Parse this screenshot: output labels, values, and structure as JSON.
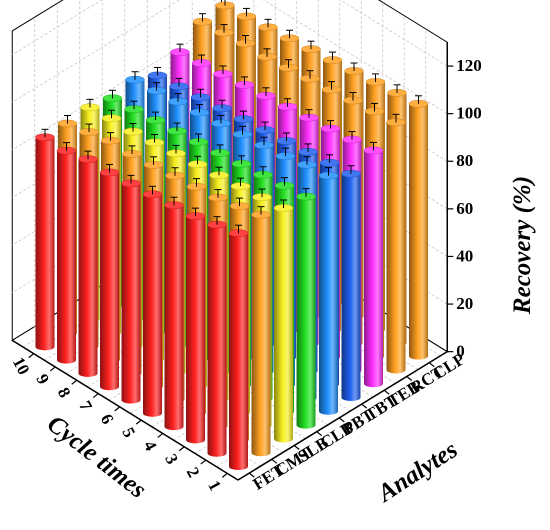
{
  "chart_data": {
    "type": "bar3d",
    "x_axis": {
      "label": "Cycle times",
      "ticks": [
        "1",
        "2",
        "3",
        "4",
        "5",
        "6",
        "7",
        "8",
        "9",
        "10"
      ]
    },
    "y_axis": {
      "label": "Analytes",
      "ticks": [
        "FET",
        "CMT",
        "SLB",
        "CLB",
        "PBT",
        "TBT",
        "TEB",
        "RCT",
        "CLP"
      ]
    },
    "z_axis": {
      "label": "Recovery (%)",
      "ticks": [
        "0",
        "20",
        "40",
        "60",
        "80",
        "100",
        "120"
      ],
      "range": [
        0,
        130
      ]
    },
    "grid": true,
    "error_bars": true,
    "colors": {
      "FET": "#ff2020",
      "CMT": "#ffa020",
      "SLB": "#f8f020",
      "CLB": "#20e020",
      "PBT": "#2090ff",
      "TBT": "#2060f0",
      "TEB": "#ff30ff",
      "RCT": "#ffa020",
      "CLP": "#ffa020"
    },
    "series": [
      {
        "name": "FET",
        "values": [
          98,
          96,
          94,
          93,
          92,
          91,
          90,
          90,
          88,
          88
        ]
      },
      {
        "name": "CMT",
        "values": [
          100,
          98,
          96,
          95,
          94,
          93,
          92,
          92,
          90,
          88
        ]
      },
      {
        "name": "SLB",
        "values": [
          97,
          96,
          95,
          94,
          93,
          92,
          91,
          90,
          90,
          89
        ]
      },
      {
        "name": "CLB",
        "values": [
          96,
          95,
          94,
          93,
          92,
          91,
          90,
          89,
          88,
          87
        ]
      },
      {
        "name": "PBT",
        "values": [
          99,
          98,
          96,
          95,
          94,
          93,
          92,
          91,
          90,
          89
        ]
      },
      {
        "name": "TBT",
        "values": [
          94,
          93,
          92,
          91,
          90,
          89,
          88,
          87,
          86,
          85
        ]
      },
      {
        "name": "TEB",
        "values": [
          98,
          97,
          96,
          95,
          94,
          93,
          92,
          91,
          90,
          89
        ]
      },
      {
        "name": "RCT",
        "values": [
          104,
          103,
          102,
          101,
          100,
          99,
          98,
          98,
          97,
          96
        ]
      },
      {
        "name": "CLP",
        "values": [
          106,
          105,
          104,
          103,
          102,
          101,
          100,
          99,
          98,
          97
        ]
      }
    ]
  }
}
